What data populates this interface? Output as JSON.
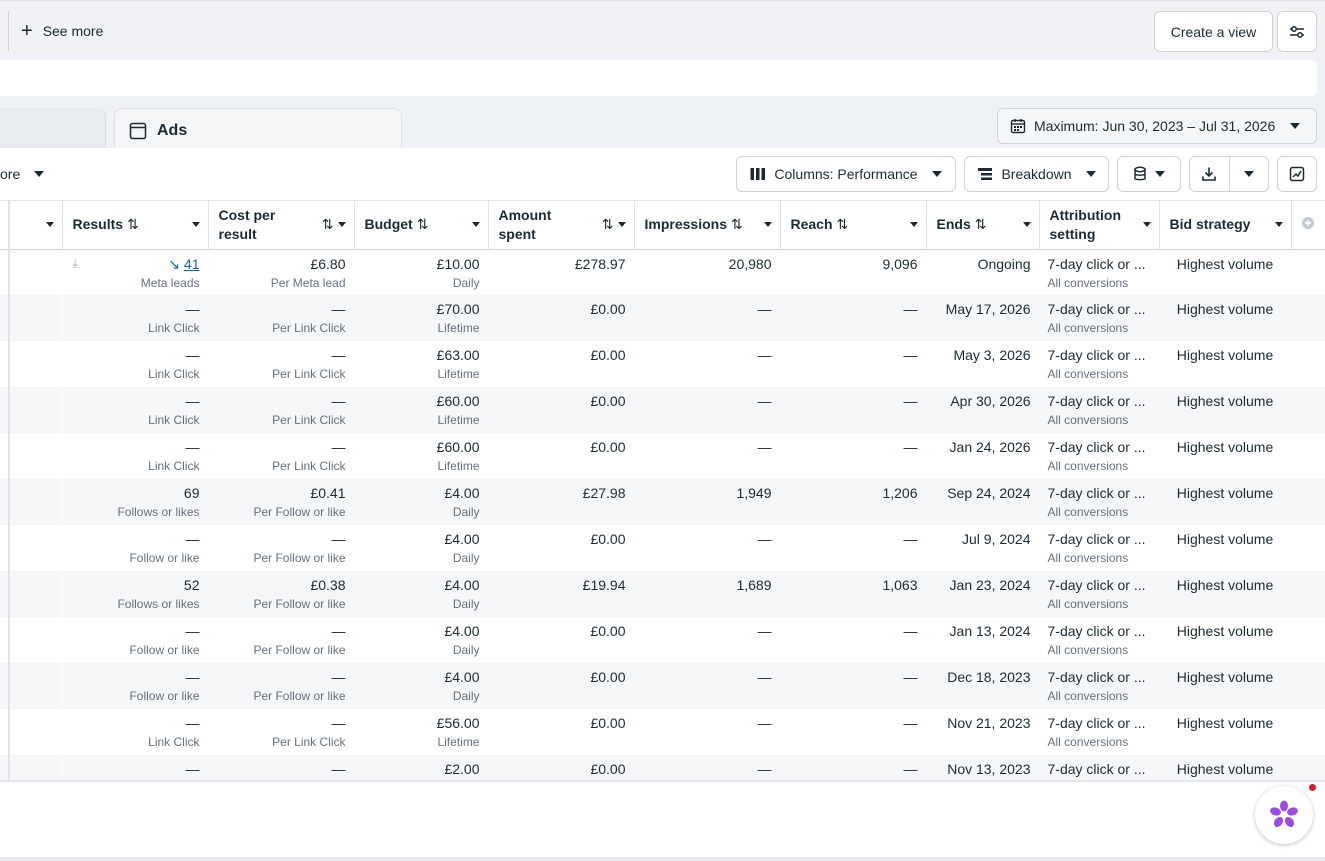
{
  "topbar": {
    "see_more_label": "See more",
    "create_view_label": "Create a view"
  },
  "tabs": {
    "ads_label": "Ads"
  },
  "date_range": {
    "label": "Maximum: Jun 30, 2023 – Jul 31, 2026"
  },
  "toolbar": {
    "more_label_partial": "ore",
    "columns_label": "Columns: Performance",
    "breakdown_label": "Breakdown"
  },
  "table": {
    "headers": {
      "results": "Results",
      "cost_per_result": "Cost per result",
      "budget": "Budget",
      "amount_spent": "Amount spent",
      "impressions": "Impressions",
      "reach": "Reach",
      "ends": "Ends",
      "attribution": "Attribution setting",
      "bid_strategy": "Bid strategy"
    },
    "rows": [
      {
        "results": "41",
        "results_sub": "Meta leads",
        "cpr": "£6.80",
        "cpr_sub": "Per Meta lead",
        "budget": "£10.00",
        "budget_sub": "Daily",
        "spent": "£278.97",
        "impressions": "20,980",
        "reach": "9,096",
        "ends": "Ongoing",
        "attr": "7-day click or ...",
        "attr_sub": "All conversions",
        "bid": "Highest volume"
      },
      {
        "results": "—",
        "results_sub": "Link Click",
        "cpr": "—",
        "cpr_sub": "Per Link Click",
        "budget": "£70.00",
        "budget_sub": "Lifetime",
        "spent": "£0.00",
        "impressions": "—",
        "reach": "—",
        "ends": "May 17, 2026",
        "attr": "7-day click or ...",
        "attr_sub": "All conversions",
        "bid": "Highest volume"
      },
      {
        "results": "—",
        "results_sub": "Link Click",
        "cpr": "—",
        "cpr_sub": "Per Link Click",
        "budget": "£63.00",
        "budget_sub": "Lifetime",
        "spent": "£0.00",
        "impressions": "—",
        "reach": "—",
        "ends": "May 3, 2026",
        "attr": "7-day click or ...",
        "attr_sub": "All conversions",
        "bid": "Highest volume"
      },
      {
        "results": "—",
        "results_sub": "Link Click",
        "cpr": "—",
        "cpr_sub": "Per Link Click",
        "budget": "£60.00",
        "budget_sub": "Lifetime",
        "spent": "£0.00",
        "impressions": "—",
        "reach": "—",
        "ends": "Apr 30, 2026",
        "attr": "7-day click or ...",
        "attr_sub": "All conversions",
        "bid": "Highest volume"
      },
      {
        "results": "—",
        "results_sub": "Link Click",
        "cpr": "—",
        "cpr_sub": "Per Link Click",
        "budget": "£60.00",
        "budget_sub": "Lifetime",
        "spent": "£0.00",
        "impressions": "—",
        "reach": "—",
        "ends": "Jan 24, 2026",
        "attr": "7-day click or ...",
        "attr_sub": "All conversions",
        "bid": "Highest volume"
      },
      {
        "results": "69",
        "results_sub": "Follows or likes",
        "cpr": "£0.41",
        "cpr_sub": "Per Follow or like",
        "budget": "£4.00",
        "budget_sub": "Daily",
        "spent": "£27.98",
        "impressions": "1,949",
        "reach": "1,206",
        "ends": "Sep 24, 2024",
        "attr": "7-day click or ...",
        "attr_sub": "All conversions",
        "bid": "Highest volume"
      },
      {
        "results": "—",
        "results_sub": "Follow or like",
        "cpr": "—",
        "cpr_sub": "Per Follow or like",
        "budget": "£4.00",
        "budget_sub": "Daily",
        "spent": "£0.00",
        "impressions": "—",
        "reach": "—",
        "ends": "Jul 9, 2024",
        "attr": "7-day click or ...",
        "attr_sub": "All conversions",
        "bid": "Highest volume"
      },
      {
        "results": "52",
        "results_sub": "Follows or likes",
        "cpr": "£0.38",
        "cpr_sub": "Per Follow or like",
        "budget": "£4.00",
        "budget_sub": "Daily",
        "spent": "£19.94",
        "impressions": "1,689",
        "reach": "1,063",
        "ends": "Jan 23, 2024",
        "attr": "7-day click or ...",
        "attr_sub": "All conversions",
        "bid": "Highest volume"
      },
      {
        "results": "—",
        "results_sub": "Follow or like",
        "cpr": "—",
        "cpr_sub": "Per Follow or like",
        "budget": "£4.00",
        "budget_sub": "Daily",
        "spent": "£0.00",
        "impressions": "—",
        "reach": "—",
        "ends": "Jan 13, 2024",
        "attr": "7-day click or ...",
        "attr_sub": "All conversions",
        "bid": "Highest volume"
      },
      {
        "results": "—",
        "results_sub": "Follow or like",
        "cpr": "—",
        "cpr_sub": "Per Follow or like",
        "budget": "£4.00",
        "budget_sub": "Daily",
        "spent": "£0.00",
        "impressions": "—",
        "reach": "—",
        "ends": "Dec 18, 2023",
        "attr": "7-day click or ...",
        "attr_sub": "All conversions",
        "bid": "Highest volume"
      },
      {
        "results": "—",
        "results_sub": "Link Click",
        "cpr": "—",
        "cpr_sub": "Per Link Click",
        "budget": "£56.00",
        "budget_sub": "Lifetime",
        "spent": "£0.00",
        "impressions": "—",
        "reach": "—",
        "ends": "Nov 21, 2023",
        "attr": "7-day click or ...",
        "attr_sub": "All conversions",
        "bid": "Highest volume"
      },
      {
        "results": "—",
        "results_sub": "",
        "cpr": "—",
        "cpr_sub": "",
        "budget": "£2.00",
        "budget_sub": "",
        "spent": "£0.00",
        "impressions": "—",
        "reach": "—",
        "ends": "Nov 13, 2023",
        "attr": "7-day click or ...",
        "attr_sub": "",
        "bid": "Highest volume"
      }
    ]
  },
  "colors": {
    "link_blue": "#1a5fb4",
    "notification_red": "#d0202e",
    "assistant_purple": "#9b4de0"
  },
  "icons": [
    "plus-icon",
    "filter-sliders-icon",
    "calendar-icon",
    "ad-page-icon",
    "columns-icon",
    "breakdown-icon",
    "reports-icon",
    "download-icon",
    "chart-expand-icon",
    "trend-down-icon",
    "add-column-icon",
    "assistant-flower-icon"
  ]
}
